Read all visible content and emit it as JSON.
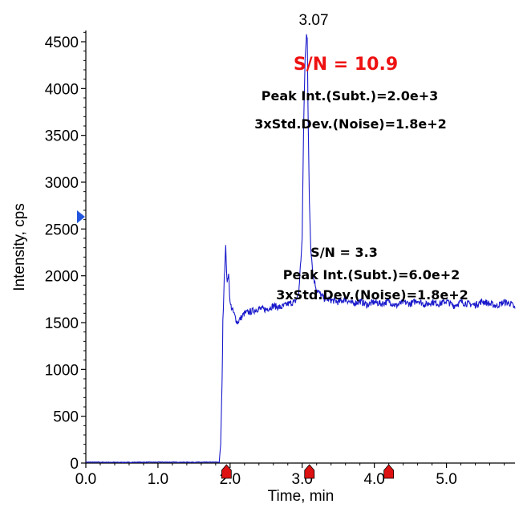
{
  "chart_data": {
    "type": "line",
    "title": "",
    "xlabel": "Time, min",
    "ylabel": "Intensity, cps",
    "xlim": [
      0,
      5.95
    ],
    "ylim": [
      0,
      4620
    ],
    "x_ticks": [
      0.0,
      1.0,
      2.0,
      3.0,
      4.0,
      5.0
    ],
    "x_tick_labels": [
      "0.0",
      "1.0",
      "2.0",
      "3.0",
      "4.0",
      "5.0"
    ],
    "y_ticks": [
      0,
      500,
      1000,
      1500,
      2000,
      2500,
      3000,
      3500,
      4000,
      4500
    ],
    "y_tick_labels": [
      "0",
      "500",
      "1000",
      "1500",
      "2000",
      "2500",
      "3000",
      "3500",
      "4000",
      "4500"
    ],
    "grid": false,
    "legend": "none",
    "series": [
      {
        "color": "#1a1acc",
        "x": [
          0.0,
          0.5,
          1.0,
          1.5,
          1.85,
          1.87,
          1.89,
          1.9,
          1.92,
          1.94,
          1.96,
          1.98,
          2.0,
          2.05,
          2.1,
          2.15,
          2.2,
          2.3,
          2.4,
          2.5,
          2.6,
          2.7,
          2.8,
          2.9,
          2.95,
          3.0,
          3.02,
          3.04,
          3.06,
          3.07,
          3.08,
          3.1,
          3.12,
          3.15,
          3.2,
          3.3,
          3.4,
          3.5,
          3.6,
          3.7,
          3.8,
          3.9,
          4.0,
          4.1,
          4.2,
          4.3,
          4.4,
          4.5,
          4.6,
          4.7,
          4.8,
          4.9,
          5.0,
          5.1,
          5.2,
          5.3,
          5.4,
          5.5,
          5.6,
          5.7,
          5.8,
          5.9,
          5.95
        ],
        "y": [
          10,
          8,
          10,
          9,
          10,
          200,
          900,
          1500,
          2000,
          2300,
          1900,
          2050,
          1700,
          1600,
          1500,
          1550,
          1600,
          1620,
          1650,
          1640,
          1680,
          1660,
          1700,
          1720,
          1800,
          2400,
          3600,
          4300,
          4600,
          4550,
          3800,
          2800,
          2300,
          2000,
          1850,
          1760,
          1740,
          1720,
          1750,
          1700,
          1730,
          1690,
          1720,
          1700,
          1730,
          1680,
          1720,
          1700,
          1740,
          1690,
          1720,
          1700,
          1730,
          1680,
          1720,
          1700,
          1690,
          1730,
          1700,
          1680,
          1720,
          1700,
          1650
        ]
      }
    ],
    "peak_label": {
      "x": 3.07,
      "text": "3.07"
    },
    "annotations": {
      "sn_main": "S/N = 10.9",
      "peak_int_main": "Peak Int.(Subt.)=2.0e+3",
      "noise_main": "3xStd.Dev.(Noise)=1.8e+2",
      "sn_second": "S/N = 3.3",
      "peak_int_second": "Peak Int.(Subt.)=6.0e+2",
      "noise_second": "3xStd.Dev.(Noise)=1.8e+2"
    },
    "markers": {
      "x_axis_markers": [
        1.95,
        3.1,
        4.2
      ],
      "marker_color": "#dd1111",
      "y_axis_marker": 2630,
      "y_marker_color": "#2255dd"
    }
  }
}
